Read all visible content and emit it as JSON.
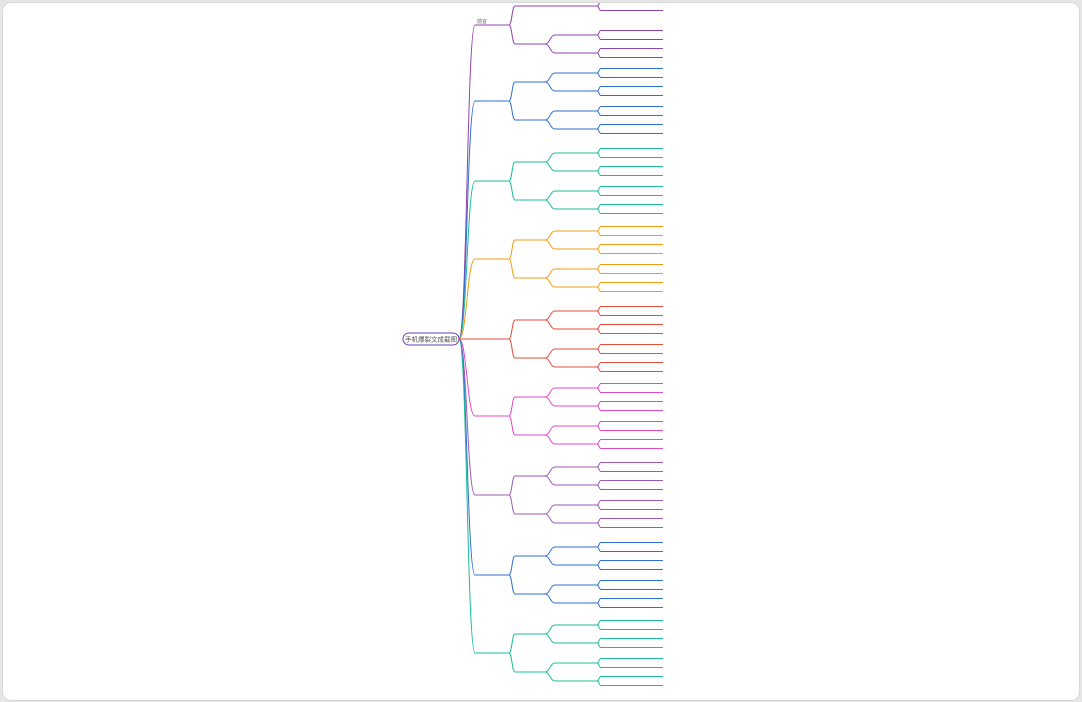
{
  "root": {
    "label": "手机爆裂文成截图"
  },
  "branches": [
    {
      "label": "前言",
      "color": "#8e44ad",
      "children": [
        {
          "label": "",
          "children": [
            {
              "label": "",
              "leaves": [
                "",
                ""
              ]
            }
          ]
        },
        {
          "label": "",
          "children": [
            {
              "label": "",
              "leaves": [
                "",
                ""
              ]
            },
            {
              "label": "",
              "leaves": [
                "",
                ""
              ]
            }
          ]
        }
      ]
    },
    {
      "label": "",
      "color": "#2f6fd1",
      "children": [
        {
          "label": "",
          "children": [
            {
              "label": "",
              "leaves": [
                "",
                ""
              ]
            },
            {
              "label": "",
              "leaves": [
                "",
                ""
              ]
            }
          ]
        },
        {
          "label": "",
          "children": [
            {
              "label": "",
              "leaves": [
                "",
                ""
              ]
            },
            {
              "label": "",
              "leaves": [
                "",
                ""
              ]
            }
          ]
        }
      ]
    },
    {
      "label": "",
      "color": "#1abc9c",
      "children": [
        {
          "label": "",
          "children": [
            {
              "label": "",
              "leaves": [
                "",
                ""
              ]
            },
            {
              "label": "",
              "leaves": [
                "",
                ""
              ]
            }
          ]
        },
        {
          "label": "",
          "children": [
            {
              "label": "",
              "leaves": [
                "",
                ""
              ]
            },
            {
              "label": "",
              "leaves": [
                "",
                ""
              ]
            }
          ]
        }
      ]
    },
    {
      "label": "",
      "color": "#f39c12",
      "children": [
        {
          "label": "",
          "children": [
            {
              "label": "",
              "leaves": [
                "",
                ""
              ]
            },
            {
              "label": "",
              "leaves": [
                "",
                ""
              ]
            }
          ]
        },
        {
          "label": "",
          "children": [
            {
              "label": "",
              "leaves": [
                "",
                ""
              ]
            },
            {
              "label": "",
              "leaves": [
                "",
                ""
              ]
            }
          ]
        }
      ]
    },
    {
      "label": "",
      "color": "#e74c3c",
      "children": [
        {
          "label": "",
          "children": [
            {
              "label": "",
              "leaves": [
                "",
                ""
              ]
            },
            {
              "label": "",
              "leaves": [
                "",
                ""
              ]
            }
          ]
        },
        {
          "label": "",
          "children": [
            {
              "label": "",
              "leaves": [
                "",
                ""
              ]
            },
            {
              "label": "",
              "leaves": [
                "",
                ""
              ]
            }
          ]
        }
      ]
    },
    {
      "label": "",
      "color": "#e048c8",
      "children": [
        {
          "label": "",
          "children": [
            {
              "label": "",
              "leaves": [
                "",
                ""
              ]
            },
            {
              "label": "",
              "leaves": [
                "",
                ""
              ]
            }
          ]
        },
        {
          "label": "",
          "children": [
            {
              "label": "",
              "leaves": [
                "",
                ""
              ]
            },
            {
              "label": "",
              "leaves": [
                "",
                ""
              ]
            }
          ]
        }
      ]
    },
    {
      "label": "",
      "color": "#9b59b6",
      "children": [
        {
          "label": "",
          "children": [
            {
              "label": "",
              "leaves": [
                "",
                ""
              ]
            },
            {
              "label": "",
              "leaves": [
                "",
                ""
              ]
            }
          ]
        },
        {
          "label": "",
          "children": [
            {
              "label": "",
              "leaves": [
                "",
                ""
              ]
            },
            {
              "label": "",
              "leaves": [
                "",
                ""
              ]
            }
          ]
        }
      ]
    },
    {
      "label": "",
      "color": "#2f6fd1",
      "children": [
        {
          "label": "",
          "children": [
            {
              "label": "",
              "leaves": [
                "",
                ""
              ]
            },
            {
              "label": "",
              "leaves": [
                "",
                ""
              ]
            }
          ]
        },
        {
          "label": "",
          "children": [
            {
              "label": "",
              "leaves": [
                "",
                ""
              ]
            },
            {
              "label": "",
              "leaves": [
                "",
                ""
              ]
            }
          ]
        }
      ]
    },
    {
      "label": "",
      "color": "#1abc9c",
      "children": [
        {
          "label": "",
          "children": [
            {
              "label": "",
              "leaves": [
                "",
                ""
              ]
            },
            {
              "label": "",
              "leaves": [
                "",
                ""
              ]
            }
          ]
        },
        {
          "label": "",
          "children": [
            {
              "label": "",
              "leaves": [
                "",
                ""
              ]
            },
            {
              "label": "",
              "leaves": [
                "",
                ""
              ]
            }
          ]
        }
      ]
    }
  ]
}
